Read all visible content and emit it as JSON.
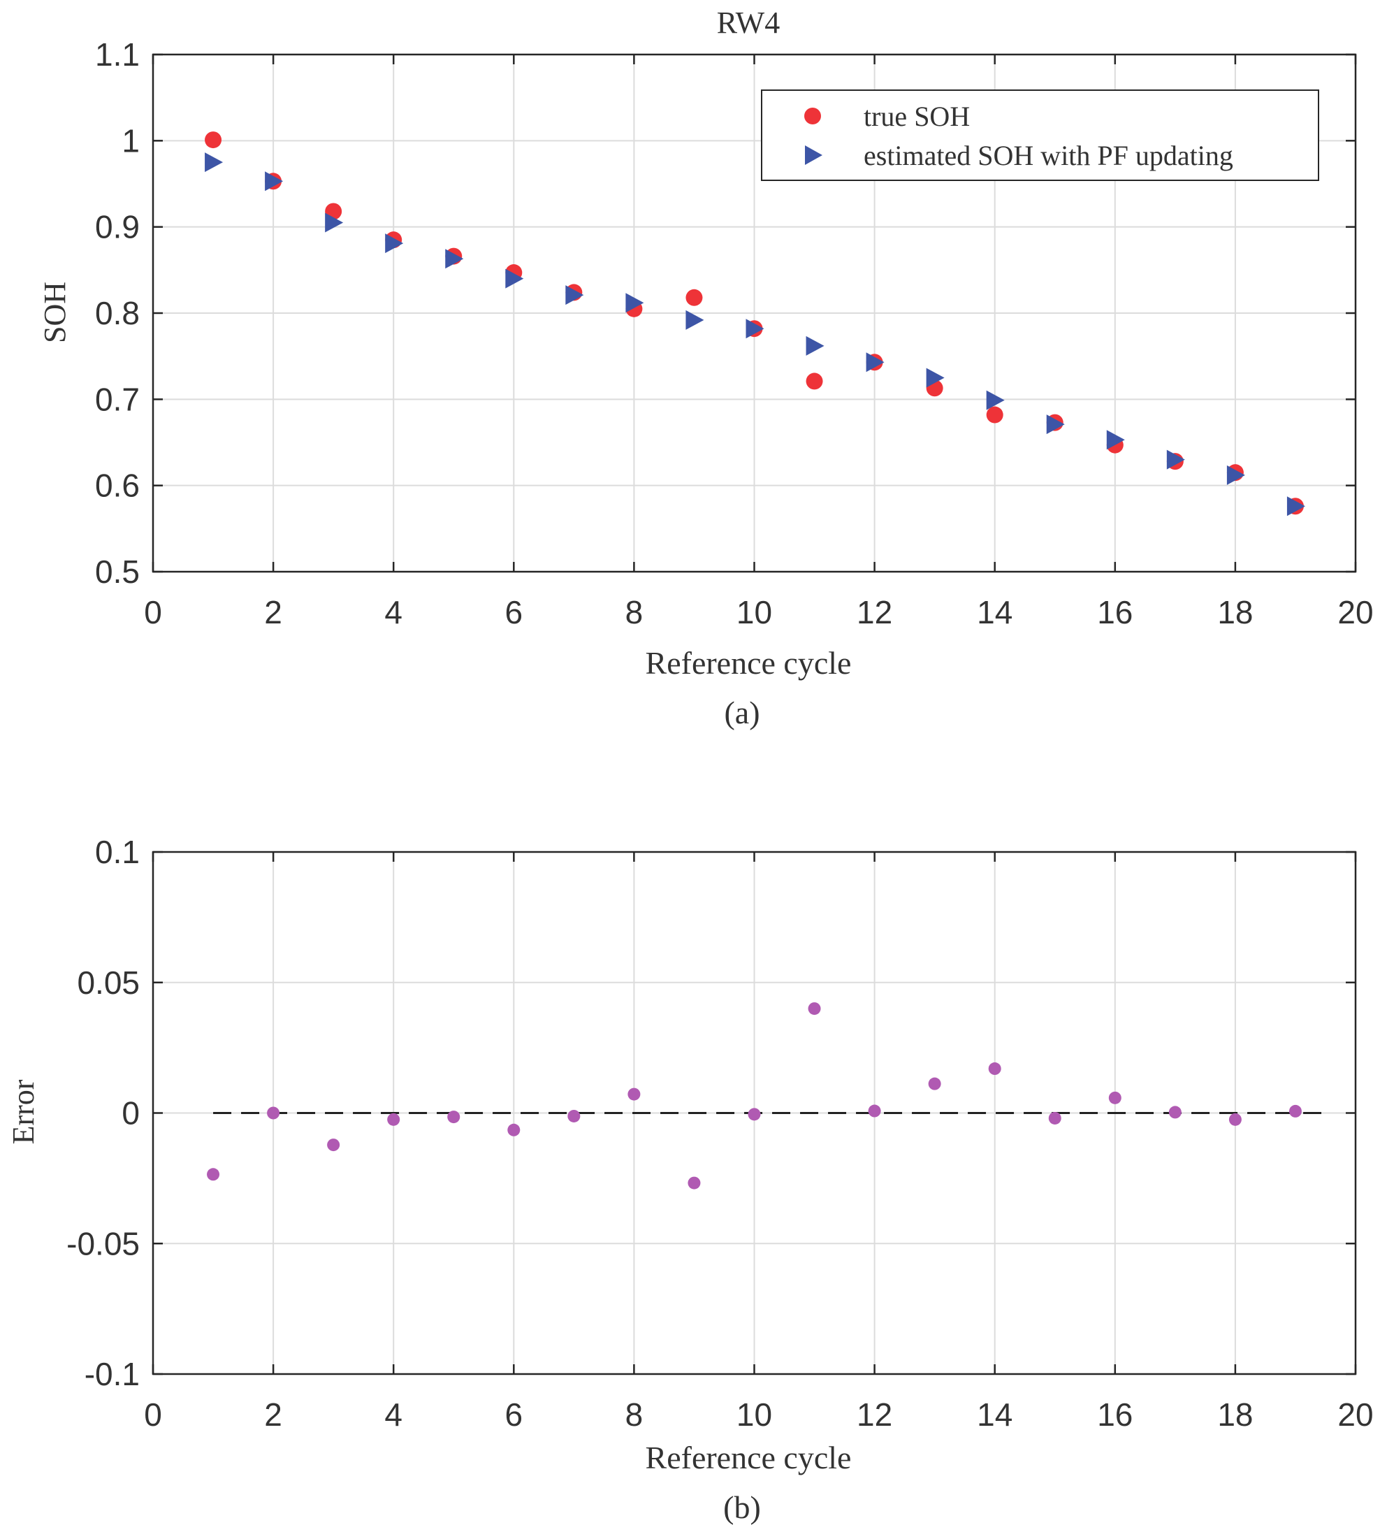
{
  "chart_data": [
    {
      "id": "a",
      "type": "scatter",
      "title": "RW4",
      "subtitle": "(a)",
      "xlabel": "Reference cycle",
      "ylabel": "SOH",
      "xlim": [
        0,
        20
      ],
      "ylim": [
        0.5,
        1.1
      ],
      "xticks": [
        0,
        2,
        4,
        6,
        8,
        10,
        12,
        14,
        16,
        18,
        20
      ],
      "yticks": [
        0.5,
        0.6,
        0.7,
        0.8,
        0.9,
        1.0,
        1.1
      ],
      "ytick_labels": [
        "0.5",
        "0.6",
        "0.7",
        "0.8",
        "0.9",
        "1",
        "1.1"
      ],
      "grid": true,
      "legend_position": "top-right",
      "x": [
        1,
        2,
        3,
        4,
        5,
        6,
        7,
        8,
        9,
        10,
        11,
        12,
        13,
        14,
        15,
        16,
        17,
        18,
        19
      ],
      "series": [
        {
          "name": "true SOH",
          "marker": "circle",
          "color": "#ee3338",
          "values": [
            1.001,
            0.953,
            0.918,
            0.885,
            0.866,
            0.847,
            0.824,
            0.805,
            0.818,
            0.782,
            0.721,
            0.743,
            0.713,
            0.682,
            0.673,
            0.647,
            0.628,
            0.615,
            0.576
          ]
        },
        {
          "name": "estimated SOH with PF updating",
          "marker": "triangle-right",
          "color": "#3d55a6",
          "values": [
            0.975,
            0.953,
            0.905,
            0.881,
            0.863,
            0.84,
            0.821,
            0.812,
            0.792,
            0.782,
            0.762,
            0.743,
            0.725,
            0.699,
            0.671,
            0.653,
            0.63,
            0.612,
            0.576
          ]
        }
      ]
    },
    {
      "id": "b",
      "type": "scatter",
      "title": "",
      "subtitle": "(b)",
      "xlabel": "Reference cycle",
      "ylabel": "Error",
      "xlim": [
        0,
        20
      ],
      "ylim": [
        -0.1,
        0.1
      ],
      "xticks": [
        0,
        2,
        4,
        6,
        8,
        10,
        12,
        14,
        16,
        18,
        20
      ],
      "yticks": [
        -0.1,
        -0.05,
        0,
        0.05,
        0.1
      ],
      "ytick_labels": [
        "-0.1",
        "-0.05",
        "0",
        "0.05",
        "0.1"
      ],
      "grid": true,
      "reference_line": {
        "y": 0,
        "style": "dashed",
        "from_x": 1,
        "to_x": 19.5,
        "color": "#222222"
      },
      "x": [
        1,
        2,
        3,
        4,
        5,
        6,
        7,
        8,
        9,
        10,
        11,
        12,
        13,
        14,
        15,
        16,
        17,
        18,
        19
      ],
      "series": [
        {
          "name": "Error",
          "marker": "circle",
          "color": "#b05ab2",
          "values": [
            -0.0235,
            0.0,
            -0.0122,
            -0.0025,
            -0.0015,
            -0.0065,
            -0.0012,
            0.0072,
            -0.0268,
            -0.0005,
            0.04,
            0.0008,
            0.0112,
            0.017,
            -0.002,
            0.0058,
            0.0003,
            -0.0025,
            0.0007
          ]
        }
      ]
    }
  ]
}
